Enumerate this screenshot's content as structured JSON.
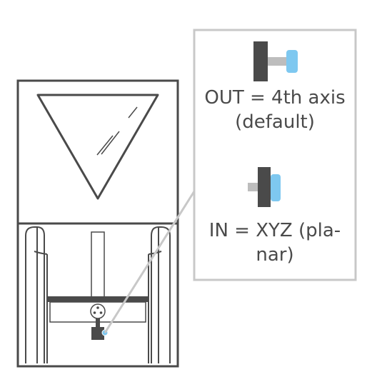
{
  "diagram": {
    "callout": {
      "out_label": "OUT = 4th axis (default)",
      "in_label": "IN = XYZ (pla-nar)"
    },
    "colors": {
      "machine_stroke": "#4a4a4a",
      "callout_border": "#c8c8c8",
      "knob_dark": "#4a4a4a",
      "knob_shaft": "#bdbdbd",
      "knob_accent": "#7ec8f0"
    }
  }
}
